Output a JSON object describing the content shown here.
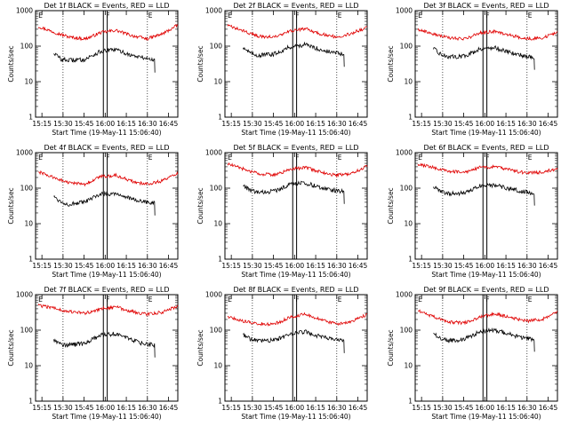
{
  "colors": {
    "events": "#000000",
    "lld": "#e00000",
    "frame": "#000000",
    "background": "#ffffff"
  },
  "shared": {
    "xtick_labels": [
      "15:15",
      "15:30",
      "15:45",
      "16:00",
      "16:15",
      "16:30",
      "16:45"
    ],
    "xlabel": "Start Time (19-May-11 15:06:40)",
    "ylabel": "Counts/sec",
    "ytick_labels": [
      "1",
      "10",
      "100",
      "1000"
    ],
    "markers": [
      "E",
      "F",
      "E"
    ],
    "x_range_min": [
      8.3,
      100
    ],
    "y_scale": "log",
    "ylim": [
      1,
      1000
    ]
  },
  "chart_data": [
    {
      "type": "line",
      "title": "Det 1f BLACK = Events, RED = LLD",
      "series": [
        {
          "name": "LLD",
          "color": "#e00000",
          "x": [
            10,
            20,
            30,
            40,
            45,
            50,
            60,
            70,
            75,
            80,
            90,
            100
          ],
          "values": [
            360,
            250,
            180,
            160,
            190,
            240,
            280,
            200,
            180,
            160,
            220,
            390
          ]
        },
        {
          "name": "Events",
          "color": "#000000",
          "x": [
            20,
            25,
            30,
            40,
            45,
            50,
            60,
            70,
            75,
            80,
            85
          ],
          "values": [
            65,
            42,
            40,
            42,
            55,
            70,
            80,
            55,
            50,
            45,
            40
          ]
        }
      ]
    },
    {
      "type": "line",
      "title": "Det 2f BLACK = Events, RED = LLD",
      "series": [
        {
          "name": "LLD",
          "color": "#e00000",
          "x": [
            10,
            20,
            30,
            40,
            45,
            50,
            60,
            70,
            75,
            80,
            90,
            100
          ],
          "values": [
            380,
            270,
            190,
            180,
            210,
            260,
            310,
            220,
            200,
            180,
            230,
            340
          ]
        },
        {
          "name": "Events",
          "color": "#000000",
          "x": [
            20,
            25,
            30,
            40,
            45,
            50,
            60,
            70,
            75,
            80,
            85
          ],
          "values": [
            95,
            62,
            55,
            60,
            75,
            95,
            110,
            80,
            70,
            65,
            58
          ]
        }
      ]
    },
    {
      "type": "line",
      "title": "Det 3f BLACK = Events, RED = LLD",
      "series": [
        {
          "name": "LLD",
          "color": "#e00000",
          "x": [
            10,
            20,
            30,
            40,
            45,
            50,
            60,
            70,
            75,
            80,
            90,
            100
          ],
          "values": [
            300,
            220,
            170,
            160,
            190,
            240,
            260,
            200,
            180,
            160,
            170,
            240
          ]
        },
        {
          "name": "Events",
          "color": "#000000",
          "x": [
            20,
            25,
            30,
            40,
            45,
            50,
            60,
            70,
            75,
            80,
            85
          ],
          "values": [
            85,
            58,
            50,
            52,
            65,
            85,
            90,
            65,
            58,
            52,
            48
          ]
        }
      ]
    },
    {
      "type": "line",
      "title": "Det 4f BLACK = Events, RED = LLD",
      "series": [
        {
          "name": "LLD",
          "color": "#e00000",
          "x": [
            10,
            20,
            30,
            40,
            45,
            50,
            60,
            70,
            75,
            80,
            90,
            100
          ],
          "values": [
            290,
            200,
            140,
            130,
            160,
            210,
            230,
            160,
            140,
            130,
            160,
            270
          ]
        },
        {
          "name": "Events",
          "color": "#000000",
          "x": [
            20,
            25,
            30,
            40,
            45,
            50,
            60,
            70,
            75,
            80,
            85
          ],
          "values": [
            60,
            40,
            35,
            40,
            52,
            68,
            72,
            50,
            44,
            40,
            38
          ]
        }
      ]
    },
    {
      "type": "line",
      "title": "Det 5f BLACK = Events, RED = LLD",
      "series": [
        {
          "name": "LLD",
          "color": "#e00000",
          "x": [
            10,
            20,
            30,
            40,
            45,
            50,
            60,
            70,
            75,
            80,
            90,
            100
          ],
          "values": [
            480,
            350,
            250,
            240,
            280,
            340,
            380,
            290,
            250,
            230,
            260,
            420
          ]
        },
        {
          "name": "Events",
          "color": "#000000",
          "x": [
            20,
            25,
            30,
            40,
            45,
            50,
            60,
            70,
            75,
            80,
            85
          ],
          "values": [
            120,
            85,
            75,
            82,
            100,
            130,
            140,
            105,
            95,
            85,
            80
          ]
        }
      ]
    },
    {
      "type": "line",
      "title": "Det 6f BLACK = Events, RED = LLD",
      "series": [
        {
          "name": "LLD",
          "color": "#e00000",
          "x": [
            10,
            20,
            30,
            40,
            45,
            50,
            60,
            70,
            75,
            80,
            90,
            100
          ],
          "values": [
            480,
            380,
            300,
            280,
            320,
            380,
            400,
            320,
            290,
            270,
            280,
            350
          ]
        },
        {
          "name": "Events",
          "color": "#000000",
          "x": [
            20,
            25,
            30,
            40,
            45,
            50,
            60,
            70,
            75,
            80,
            85
          ],
          "values": [
            110,
            80,
            70,
            72,
            90,
            115,
            120,
            95,
            85,
            78,
            72
          ]
        }
      ]
    },
    {
      "type": "line",
      "title": "Det 7f BLACK = Events, RED = LLD",
      "series": [
        {
          "name": "LLD",
          "color": "#e00000",
          "x": [
            10,
            20,
            30,
            40,
            45,
            50,
            60,
            70,
            75,
            80,
            90,
            100
          ],
          "values": [
            500,
            420,
            330,
            300,
            330,
            400,
            450,
            340,
            300,
            280,
            320,
            480
          ]
        },
        {
          "name": "Events",
          "color": "#000000",
          "x": [
            20,
            25,
            30,
            40,
            45,
            50,
            60,
            70,
            75,
            80,
            85
          ],
          "values": [
            55,
            40,
            38,
            42,
            55,
            72,
            80,
            55,
            45,
            40,
            38
          ]
        }
      ]
    },
    {
      "type": "line",
      "title": "Det 8f BLACK = Events, RED = LLD",
      "series": [
        {
          "name": "LLD",
          "color": "#e00000",
          "x": [
            10,
            20,
            30,
            40,
            45,
            50,
            60,
            70,
            75,
            80,
            90,
            100
          ],
          "values": [
            240,
            180,
            150,
            150,
            180,
            230,
            280,
            200,
            170,
            150,
            170,
            280
          ]
        },
        {
          "name": "Events",
          "color": "#000000",
          "x": [
            20,
            25,
            30,
            40,
            45,
            50,
            60,
            70,
            75,
            80,
            85
          ],
          "values": [
            75,
            55,
            50,
            52,
            62,
            80,
            90,
            65,
            58,
            52,
            50
          ]
        }
      ]
    },
    {
      "type": "line",
      "title": "Det 9f BLACK = Events, RED = LLD",
      "series": [
        {
          "name": "LLD",
          "color": "#e00000",
          "x": [
            10,
            20,
            30,
            40,
            45,
            50,
            60,
            70,
            75,
            80,
            90,
            100
          ],
          "values": [
            350,
            240,
            170,
            160,
            190,
            240,
            290,
            230,
            200,
            180,
            200,
            320
          ]
        },
        {
          "name": "Events",
          "color": "#000000",
          "x": [
            20,
            25,
            30,
            40,
            45,
            50,
            60,
            70,
            75,
            80,
            85
          ],
          "values": [
            80,
            58,
            50,
            55,
            70,
            90,
            100,
            75,
            65,
            58,
            55
          ]
        }
      ]
    }
  ]
}
